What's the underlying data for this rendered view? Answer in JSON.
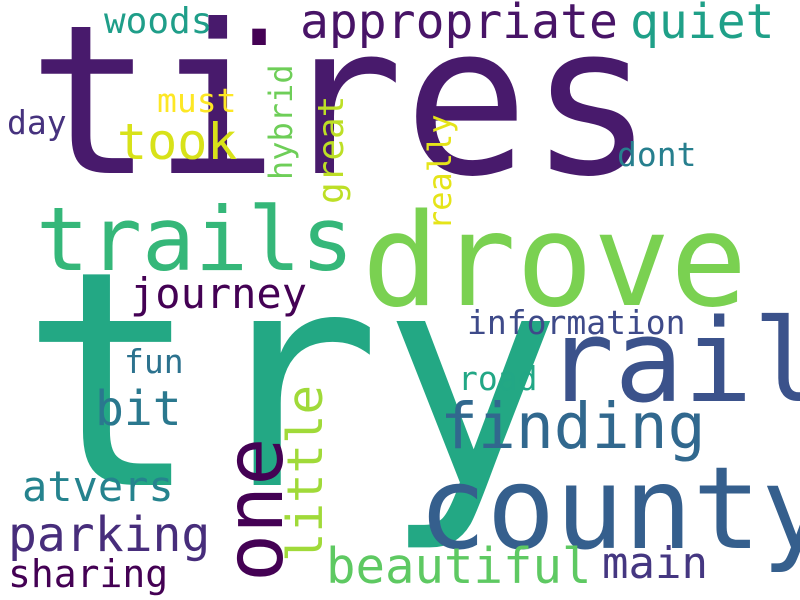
{
  "words": [
    {
      "text": "tires",
      "color": "#481a6c"
    },
    {
      "text": "try",
      "color": "#23a884"
    },
    {
      "text": "drove",
      "color": "#7ad151"
    },
    {
      "text": "county",
      "color": "#355f8d"
    },
    {
      "text": "rail",
      "color": "#3b528b"
    },
    {
      "text": "trails",
      "color": "#35b779"
    },
    {
      "text": "one",
      "color": "#440154"
    },
    {
      "text": "finding",
      "color": "#31688e"
    },
    {
      "text": "appropriate",
      "color": "#481467"
    },
    {
      "text": "quiet",
      "color": "#1fa088"
    },
    {
      "text": "woods",
      "color": "#1f9e89"
    },
    {
      "text": "took",
      "color": "#d8e219"
    },
    {
      "text": "journey",
      "color": "#440154"
    },
    {
      "text": "parking",
      "color": "#472d7b"
    },
    {
      "text": "beautiful",
      "color": "#5ec962"
    },
    {
      "text": "little",
      "color": "#a0da39"
    },
    {
      "text": "bit",
      "color": "#2a788e"
    },
    {
      "text": "atvers",
      "color": "#25838e"
    },
    {
      "text": "sharing",
      "color": "#440154"
    },
    {
      "text": "main",
      "color": "#453781"
    },
    {
      "text": "great",
      "color": "#bddf26"
    },
    {
      "text": "information",
      "color": "#3e4a89"
    },
    {
      "text": "road",
      "color": "#22a785"
    },
    {
      "text": "fun",
      "color": "#2c728e"
    },
    {
      "text": "dont",
      "color": "#277f8e"
    },
    {
      "text": "hybrid",
      "color": "#6ece58"
    },
    {
      "text": "really",
      "color": "#e5e419"
    },
    {
      "text": "must",
      "color": "#fde725"
    },
    {
      "text": "day",
      "color": "#46327e"
    },
    {
      "text": ".",
      "color": "#440154"
    }
  ]
}
